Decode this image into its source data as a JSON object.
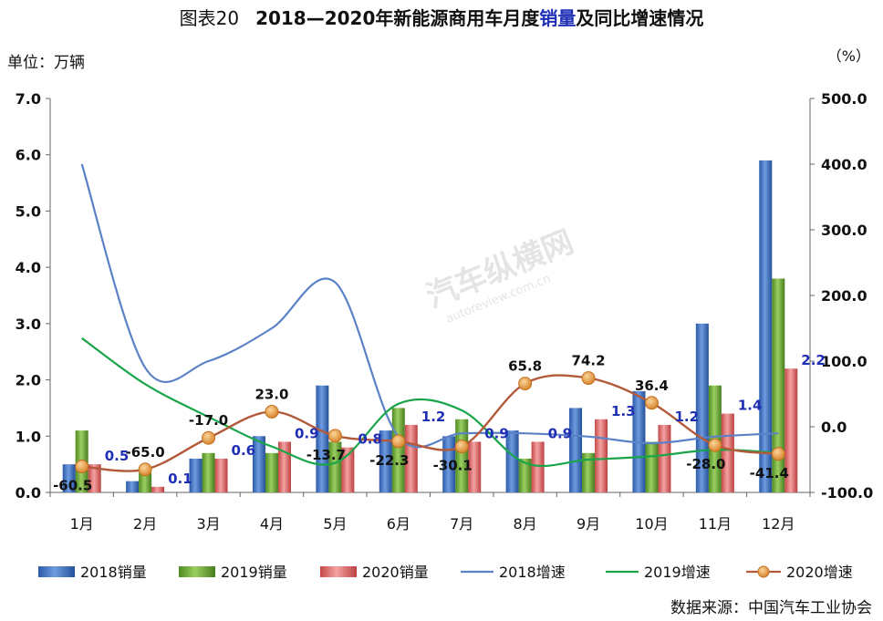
{
  "title_prefix": "图表20",
  "title_main": "2018—2020年新能源商用车月度",
  "title_highlight": "销量",
  "title_suffix": "及同比增速情况",
  "unit_left": "单位：万辆",
  "unit_right": "（%）",
  "source": "数据来源：中国汽车工业协会",
  "watermark": "汽车纵横网",
  "watermark_url": "autoreview.com.cn",
  "colors": {
    "sales2018": "#3b6fc0",
    "sales2019": "#6aa838",
    "sales2020": "#e26868",
    "growth2018": "#5b82c6",
    "growth2019": "#1aa54a",
    "growth2020": "#b25a3a",
    "marker2020": "#e79a3a"
  },
  "chart_data": {
    "type": "bar",
    "categories": [
      "1月",
      "2月",
      "3月",
      "4月",
      "5月",
      "6月",
      "7月",
      "8月",
      "9月",
      "10月",
      "11月",
      "12月"
    ],
    "y_left": {
      "min": 0,
      "max": 7,
      "ticks": [
        "0.0",
        "1.0",
        "2.0",
        "3.0",
        "4.0",
        "5.0",
        "6.0",
        "7.0"
      ]
    },
    "y_right": {
      "min": -100,
      "max": 500,
      "ticks": [
        "-100.0",
        "0.0",
        "100.0",
        "200.0",
        "300.0",
        "400.0",
        "500.0"
      ]
    },
    "bar_series": [
      {
        "name": "2018销量",
        "values": [
          0.5,
          0.2,
          0.6,
          1.0,
          1.9,
          1.1,
          1.0,
          1.1,
          1.5,
          1.8,
          3.0,
          5.9
        ]
      },
      {
        "name": "2019销量",
        "values": [
          1.1,
          0.35,
          0.7,
          0.7,
          0.9,
          1.5,
          1.3,
          0.6,
          0.7,
          0.9,
          1.9,
          3.8
        ]
      },
      {
        "name": "2020销量",
        "values": [
          0.5,
          0.1,
          0.6,
          0.9,
          0.8,
          1.2,
          0.9,
          0.9,
          1.3,
          1.2,
          1.4,
          2.2
        ]
      }
    ],
    "bar_labels_2020": [
      "0.5",
      "0.1",
      "0.6",
      "0.9",
      "0.8",
      "1.2",
      "0.9",
      "0.9",
      "1.3",
      "1.2",
      "1.4",
      "2.2"
    ],
    "line_series": [
      {
        "name": "2018增速",
        "values": [
          400,
          90,
          100,
          150,
          220,
          -15,
          -10,
          -10,
          -15,
          -25,
          -15,
          -10
        ]
      },
      {
        "name": "2019增速",
        "values": [
          135,
          65,
          15,
          -30,
          -55,
          35,
          25,
          -55,
          -50,
          -45,
          -35,
          -40
        ]
      },
      {
        "name": "2020增速",
        "values": [
          -60.5,
          -65.0,
          -17.0,
          23.0,
          -13.7,
          -22.3,
          -30.1,
          65.8,
          74.2,
          36.4,
          -28.0,
          -41.4
        ]
      }
    ],
    "growth_labels_2020": [
      "-60.5",
      "-65.0",
      "-17.0",
      "23.0",
      "-13.7",
      "-22.3",
      "-30.1",
      "65.8",
      "74.2",
      "36.4",
      "-28.0",
      "-41.4"
    ],
    "legend": [
      "2018销量",
      "2019销量",
      "2020销量",
      "2018增速",
      "2019增速",
      "2020增速"
    ],
    "legend_position": "bottom",
    "grid": false
  }
}
